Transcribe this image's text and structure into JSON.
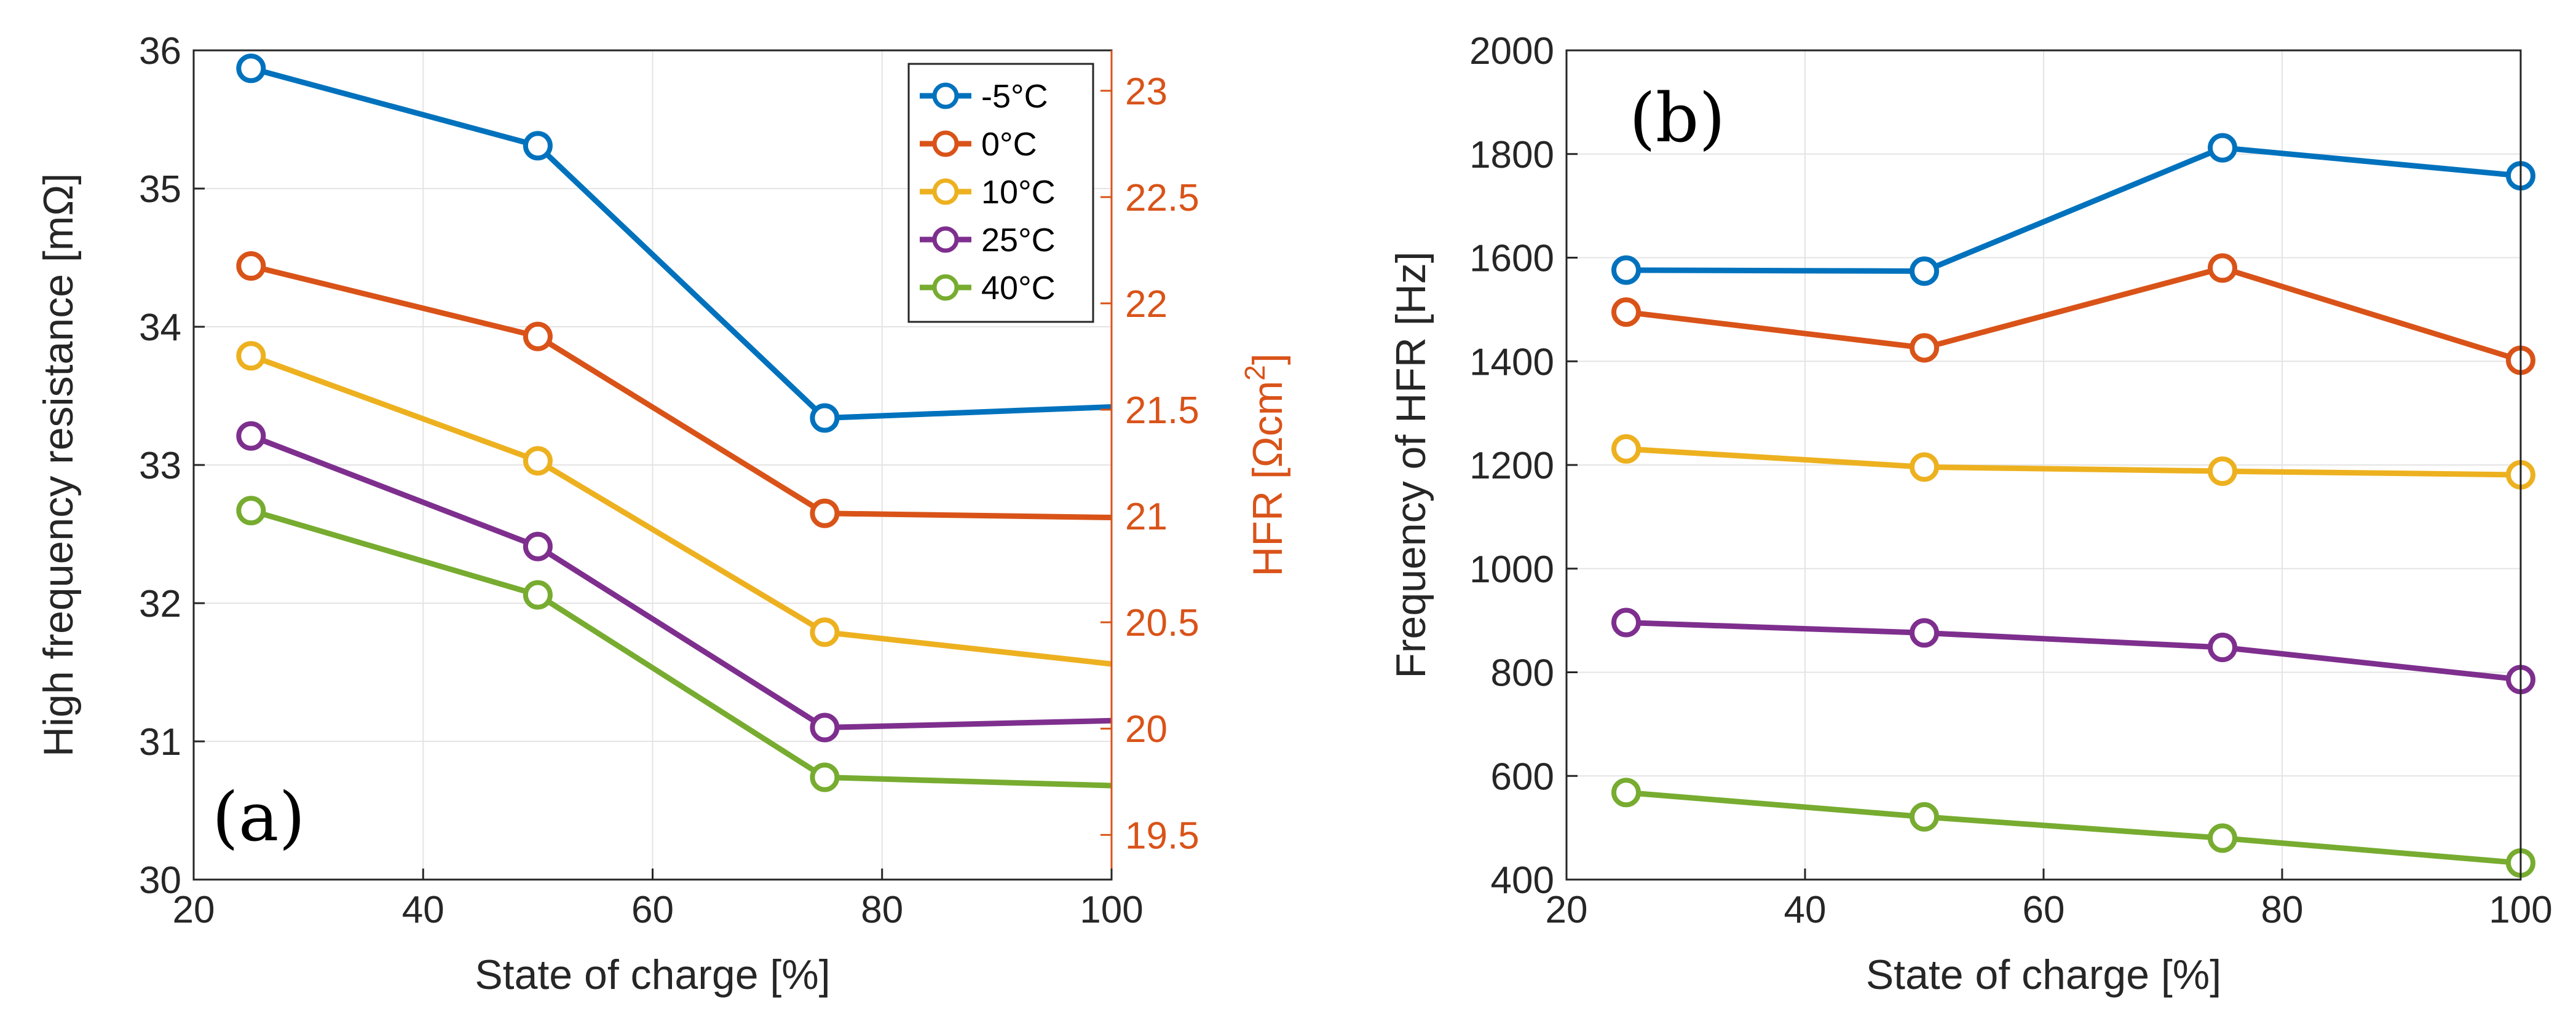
{
  "chart_data": [
    {
      "type": "line",
      "panel_label": "(a)",
      "x": [
        25,
        50,
        75,
        100
      ],
      "xlabel": "State of charge [%]",
      "ylabel": "High frequency resistance [mΩ]",
      "xlim": [
        20,
        100
      ],
      "ylim": [
        30,
        36
      ],
      "xticks": [
        20,
        40,
        60,
        80,
        100
      ],
      "yticks": [
        30,
        31,
        32,
        33,
        34,
        35,
        36
      ],
      "y2label": "HFR [Ωcm²]",
      "y2label_parts": {
        "main": "HFR [Ωcm",
        "sup": "2",
        "close": "]"
      },
      "y2lim": [
        19.29,
        23.19
      ],
      "y2ticks": [
        "19.5",
        "20",
        "20.5",
        "21",
        "21.5",
        "22",
        "22.5",
        "23"
      ],
      "y2ticks_values": [
        19.5,
        20,
        20.5,
        21,
        21.5,
        22,
        22.5,
        23
      ],
      "grid": true,
      "legend_position": "top-right",
      "series": [
        {
          "name": "-5°C",
          "values": [
            35.87,
            35.31,
            33.34,
            33.42
          ]
        },
        {
          "name": "0°C",
          "values": [
            34.44,
            33.93,
            32.65,
            32.62
          ]
        },
        {
          "name": "10°C",
          "values": [
            33.79,
            33.03,
            31.79,
            31.56
          ]
        },
        {
          "name": "25°C",
          "values": [
            33.21,
            32.41,
            31.1,
            31.15
          ]
        },
        {
          "name": "40°C",
          "values": [
            32.67,
            32.06,
            30.74,
            30.68
          ]
        }
      ],
      "markers_on_points": [
        true,
        true,
        true,
        false
      ]
    },
    {
      "type": "line",
      "panel_label": "(b)",
      "x": [
        25,
        50,
        75,
        100
      ],
      "xlabel": "State of charge [%]",
      "ylabel": "Frequency of HFR [Hz]",
      "xlim": [
        20,
        100
      ],
      "ylim": [
        400,
        2000
      ],
      "xticks": [
        20,
        40,
        60,
        80,
        100
      ],
      "yticks": [
        400,
        600,
        800,
        1000,
        1200,
        1400,
        1600,
        1800,
        2000
      ],
      "grid": true,
      "series": [
        {
          "name": "-5°C",
          "values": [
            1576,
            1574,
            1812,
            1758
          ]
        },
        {
          "name": "0°C",
          "values": [
            1495,
            1426,
            1580,
            1402
          ]
        },
        {
          "name": "10°C",
          "values": [
            1231,
            1196,
            1188,
            1181
          ]
        },
        {
          "name": "25°C",
          "values": [
            896,
            876,
            848,
            786
          ]
        },
        {
          "name": "40°C",
          "values": [
            568,
            521,
            480,
            432
          ]
        }
      ],
      "markers_on_points": [
        true,
        true,
        true,
        true
      ]
    }
  ],
  "colors": {
    "series": [
      "#0072BD",
      "#D95319",
      "#EDB120",
      "#7E2F8E",
      "#77AC30"
    ],
    "right_axis": "#D95319",
    "axis": "#262626",
    "grid": "#e4e4e4"
  }
}
